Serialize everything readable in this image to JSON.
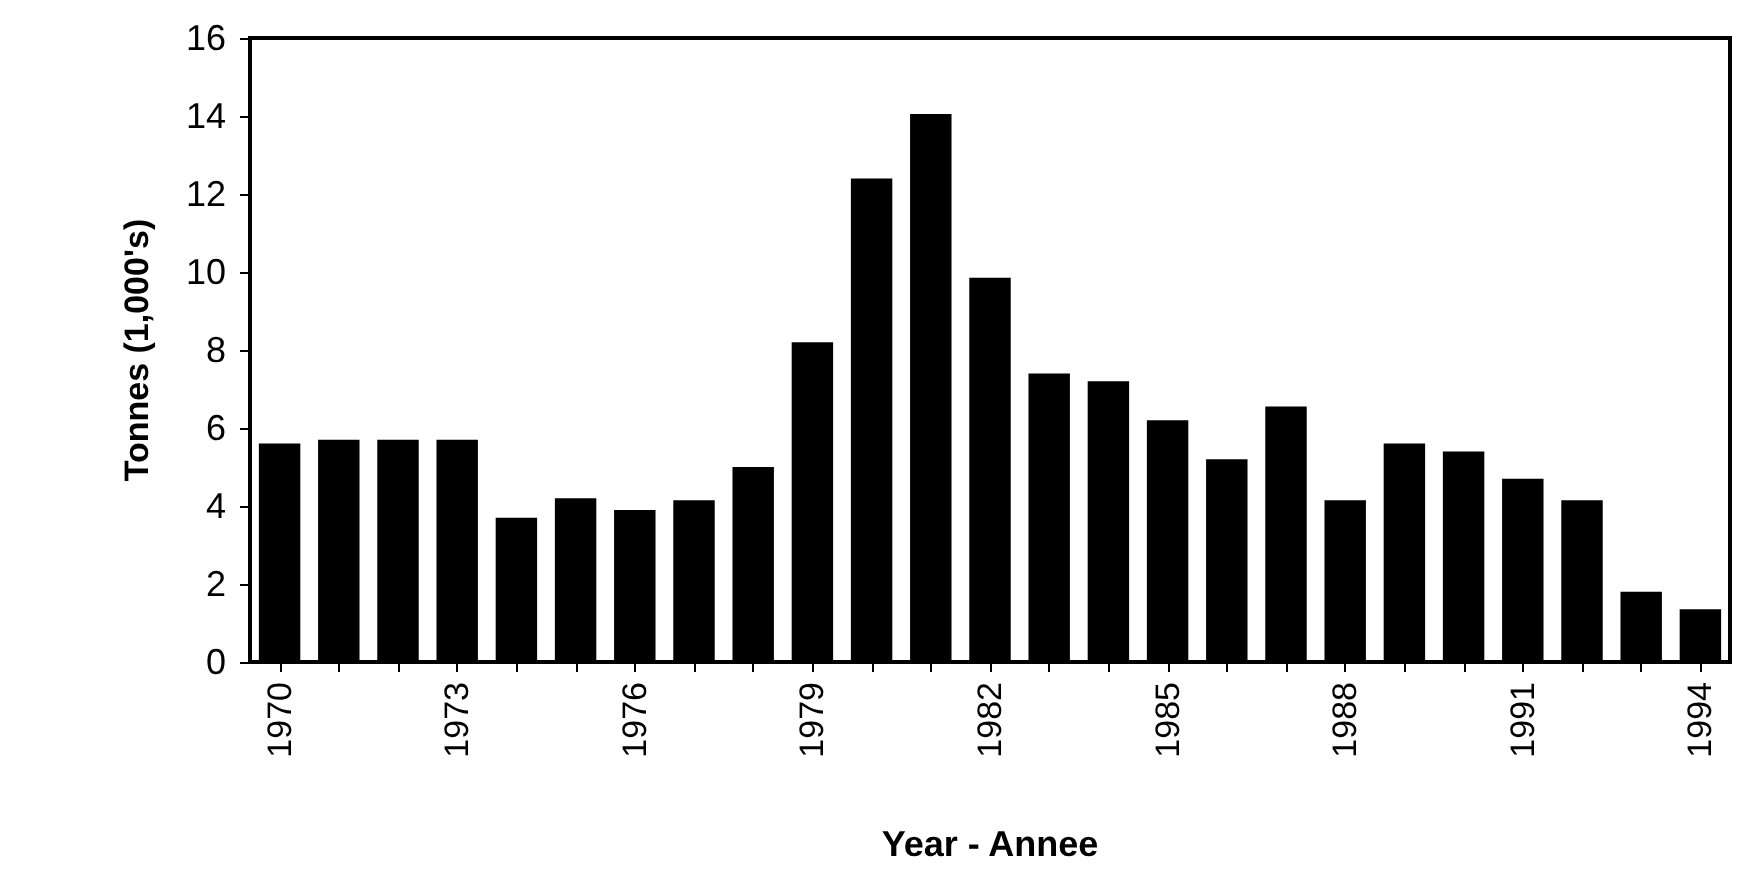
{
  "chart_data": {
    "type": "bar",
    "xlabel": "Year - Annee",
    "ylabel": "Tonnes (1,000's)",
    "categories": [
      "1970",
      null,
      null,
      "1973",
      null,
      null,
      "1976",
      null,
      null,
      "1979",
      null,
      null,
      "1982",
      null,
      null,
      "1985",
      null,
      null,
      "1988",
      null,
      null,
      "1991",
      null,
      null,
      "1994"
    ],
    "values": [
      5.6,
      5.7,
      5.7,
      5.7,
      3.7,
      4.2,
      3.9,
      4.15,
      5.0,
      8.2,
      12.4,
      14.05,
      9.85,
      7.4,
      7.2,
      6.2,
      5.2,
      6.55,
      4.15,
      5.6,
      5.4,
      4.7,
      4.15,
      1.8,
      1.35
    ],
    "color": "#000000",
    "ylim": [
      0,
      16
    ],
    "yticks": [
      0,
      2,
      4,
      6,
      8,
      10,
      12,
      14,
      16
    ],
    "grid": false
  }
}
